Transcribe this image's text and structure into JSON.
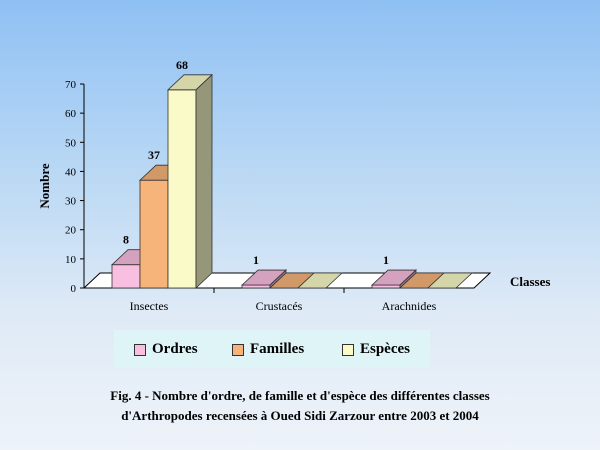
{
  "chart_data": {
    "type": "bar",
    "categories": [
      "Insectes",
      "Crustacés",
      "Arachnides"
    ],
    "series": [
      {
        "name": "Ordres",
        "values": [
          8,
          1,
          1
        ],
        "color": "#f9bfe0"
      },
      {
        "name": "Familles",
        "values": [
          37,
          0,
          0
        ],
        "color": "#f7b47a"
      },
      {
        "name": "Espèces",
        "values": [
          68,
          0,
          0
        ],
        "color": "#fafac8"
      }
    ],
    "data_labels": [
      {
        "category": "Insectes",
        "series": "Ordres",
        "text": "8"
      },
      {
        "category": "Insectes",
        "series": "Familles",
        "text": "37"
      },
      {
        "category": "Insectes",
        "series": "Espèces",
        "text": "68"
      },
      {
        "category": "Crustacés",
        "series": "Ordres",
        "text": "1"
      },
      {
        "category": "Arachnides",
        "series": "Ordres",
        "text": "1"
      }
    ],
    "ylabel": "Nombre",
    "xlabel": "Classes",
    "ylim": [
      0,
      70
    ],
    "yticks": [
      0,
      10,
      20,
      30,
      40,
      50,
      60,
      70
    ],
    "legend": "bottom",
    "grid": false,
    "style": "3d"
  },
  "caption": {
    "line1": "Fig. 4 - Nombre d'ordre, de famille et d'espèce des différentes classes",
    "line2": "d'Arthropodes recensées à Oued Sidi Zarzour entre 2003 et 2004"
  },
  "colors": {
    "axis": "#000000",
    "floor": "#ffffff",
    "depth_shade": "#888888"
  }
}
